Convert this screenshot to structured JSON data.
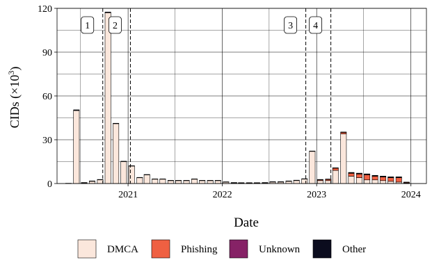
{
  "chart_data": {
    "type": "bar",
    "stacked": true,
    "xlabel": "Date",
    "ylabel": "CIDs (×10³)",
    "ylabel_parts": {
      "main": "CIDs (×10",
      "sup": "3",
      "close": ")"
    },
    "ylim": [
      0,
      120
    ],
    "yticks": [
      0,
      30,
      60,
      90,
      120
    ],
    "xlim": [
      "2020-04-01",
      "2024-03-01"
    ],
    "xticks": [
      {
        "label": "2021",
        "date": "2021-01-01"
      },
      {
        "label": "2022",
        "date": "2022-01-01"
      },
      {
        "label": "2023",
        "date": "2023-01-01"
      },
      {
        "label": "2024",
        "date": "2024-01-01"
      }
    ],
    "grid": true,
    "legend_position": "bottom",
    "months": [
      "2020-05",
      "2020-06",
      "2020-07",
      "2020-08",
      "2020-09",
      "2020-10",
      "2020-11",
      "2020-12",
      "2021-01",
      "2021-02",
      "2021-03",
      "2021-04",
      "2021-05",
      "2021-06",
      "2021-07",
      "2021-08",
      "2021-09",
      "2021-10",
      "2021-11",
      "2021-12",
      "2022-01",
      "2022-02",
      "2022-03",
      "2022-04",
      "2022-05",
      "2022-06",
      "2022-07",
      "2022-08",
      "2022-09",
      "2022-10",
      "2022-11",
      "2022-12",
      "2023-01",
      "2023-02",
      "2023-03",
      "2023-04",
      "2023-05",
      "2023-06",
      "2023-07",
      "2023-08",
      "2023-09",
      "2023-10",
      "2023-11",
      "2023-12"
    ],
    "series": [
      {
        "name": "DMCA",
        "color": "#fbe7dc",
        "values": [
          0,
          50,
          0.5,
          1.5,
          2.5,
          117,
          41,
          15,
          12,
          4,
          6,
          3,
          3,
          2,
          2,
          2,
          3,
          2,
          2,
          2,
          1,
          0.5,
          0.4,
          0.4,
          0.4,
          0.5,
          1,
          1,
          1.5,
          2,
          3,
          22,
          2,
          2,
          9,
          34,
          5,
          4,
          2.5,
          2.5,
          2,
          1.5,
          1,
          0.3
        ]
      },
      {
        "name": "Phishing",
        "color": "#ef6042",
        "values": [
          0,
          0,
          0,
          0,
          0,
          0,
          0,
          0,
          0,
          0,
          0,
          0,
          0,
          0,
          0,
          0,
          0,
          0,
          0,
          0,
          0,
          0,
          0,
          0,
          0,
          0,
          0,
          0,
          0,
          0,
          0,
          0,
          0.5,
          0.8,
          1.5,
          1,
          2,
          2.5,
          3.5,
          2.5,
          2.5,
          2.5,
          3,
          0.5
        ]
      },
      {
        "name": "Unknown",
        "color": "#862266",
        "values": [
          0,
          0,
          0,
          0,
          0,
          0,
          0,
          0,
          0,
          0,
          0,
          0,
          0,
          0,
          0,
          0,
          0,
          0,
          0,
          0,
          0,
          0,
          0,
          0,
          0,
          0,
          0,
          0,
          0,
          0,
          0,
          0,
          0,
          0,
          0,
          0,
          0.3,
          0.3,
          0.3,
          0.3,
          0.3,
          0.3,
          0.3,
          0
        ]
      },
      {
        "name": "Other",
        "color": "#0b0c1e",
        "values": [
          0.2,
          0.5,
          0.2,
          0.3,
          0.3,
          0.5,
          0.3,
          0.3,
          0.2,
          0.2,
          0.2,
          0.2,
          0.2,
          0.2,
          0.2,
          0.2,
          0.2,
          0.2,
          0.2,
          0.2,
          0.2,
          0.2,
          0.2,
          0.2,
          0.2,
          0.2,
          0.3,
          0.3,
          0.3,
          0.3,
          0.3,
          0.3,
          0.3,
          0.3,
          0.3,
          0.3,
          0.3,
          0.3,
          0.3,
          0.3,
          0.3,
          0.3,
          0.3,
          0.2
        ]
      }
    ],
    "annotations": [
      {
        "label": "1",
        "date": "2020-09-25"
      },
      {
        "label": "2",
        "date": "2021-01-10"
      },
      {
        "label": "3",
        "date": "2022-11-20"
      },
      {
        "label": "4",
        "date": "2023-02-25"
      }
    ]
  }
}
